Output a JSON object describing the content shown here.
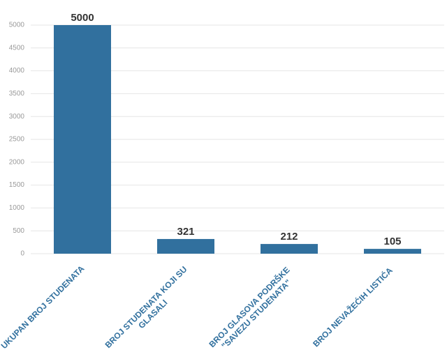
{
  "chart_data": {
    "type": "bar",
    "categories": [
      "UKUPAN BROJ STUDENATA",
      "BROJ STUDENATA KOJI SU GLASALI",
      "BROJ GLASOVA PODRŠKE \"SAVEZU STUDENATA\"",
      "BROJ NEVAŽEĆIH LISTIĆA"
    ],
    "values": [
      5000,
      321,
      212,
      105
    ],
    "color": "#31709e",
    "ylim": [
      0,
      5000
    ],
    "yticks": [
      0,
      500,
      1000,
      1500,
      2000,
      2500,
      3000,
      3500,
      4000,
      4500,
      5000
    ],
    "grid": true
  }
}
